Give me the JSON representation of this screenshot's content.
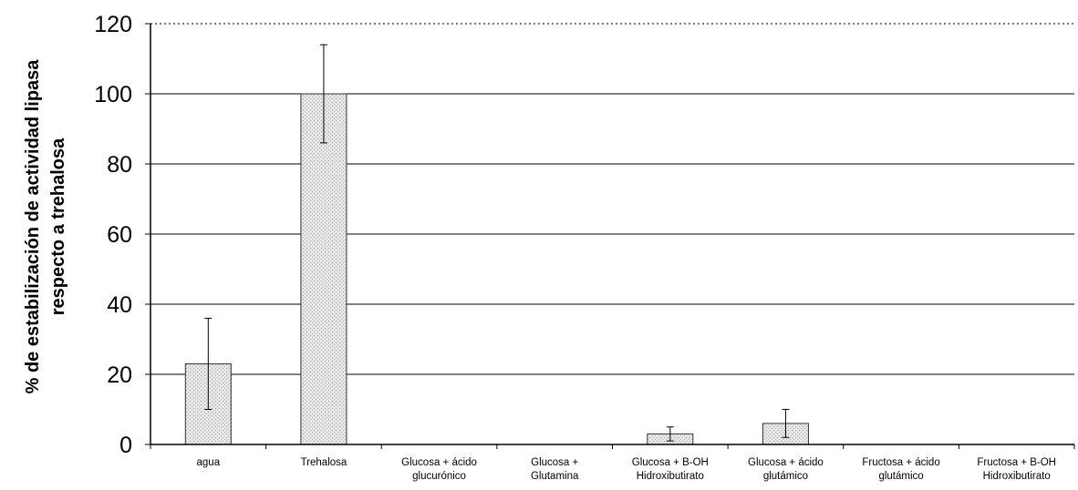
{
  "chart_data": {
    "type": "bar",
    "categories": [
      [
        "agua"
      ],
      [
        "Trehalosa"
      ],
      [
        "Glucosa + ácido",
        "glucurónico"
      ],
      [
        "Glucosa +",
        "Glutamina"
      ],
      [
        "Glucosa + B-OH",
        "Hidroxibutirato"
      ],
      [
        "Glucosa + ácido",
        "glutámico"
      ],
      [
        "Fructosa + ácido",
        "glutámico"
      ],
      [
        "Fructosa + B-OH",
        "Hidroxibutirato"
      ]
    ],
    "values": [
      23,
      100,
      0,
      0,
      3,
      6,
      0,
      0
    ],
    "errors": [
      13,
      14,
      0,
      0,
      2,
      4,
      0,
      0
    ],
    "ylabel": [
      "% de estabilización de actividad lipasa",
      "respecto a trehalosa"
    ],
    "ylim": [
      0,
      120
    ],
    "yticks": [
      "0",
      "20",
      "40",
      "60",
      "80",
      "100",
      "120"
    ],
    "grid": true,
    "colors": {
      "bar_fill": "#d4d4d4",
      "bar_stroke": "#333333",
      "grid": "#000000"
    }
  }
}
